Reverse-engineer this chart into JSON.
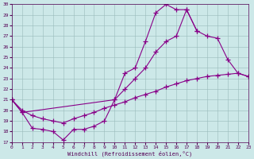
{
  "xlabel": "Windchill (Refroidissement éolien,°C)",
  "bg_color": "#cce8e8",
  "grid_color": "#99bbbb",
  "line_color": "#880088",
  "xlim": [
    0,
    23
  ],
  "ylim": [
    17,
    30
  ],
  "yticks": [
    17,
    18,
    19,
    20,
    21,
    22,
    23,
    24,
    25,
    26,
    27,
    28,
    29,
    30
  ],
  "xticks": [
    0,
    1,
    2,
    3,
    4,
    5,
    6,
    7,
    8,
    9,
    10,
    11,
    12,
    13,
    14,
    15,
    16,
    17,
    18,
    19,
    20,
    21,
    22,
    23
  ],
  "curve1_x": [
    0,
    1,
    2,
    3,
    4,
    5,
    6,
    7,
    8,
    9,
    10,
    11,
    12,
    13,
    14,
    15,
    16,
    17,
    18
  ],
  "curve1_y": [
    21.0,
    19.8,
    18.3,
    18.2,
    18.0,
    17.2,
    18.2,
    18.2,
    18.5,
    19.0,
    21.0,
    23.5,
    24.0,
    26.5,
    29.2,
    30.0,
    29.5,
    29.5,
    27.5
  ],
  "curve2_x": [
    0,
    1,
    10,
    11,
    12,
    13,
    14,
    15,
    16,
    17,
    18,
    19,
    20,
    21,
    22,
    23
  ],
  "curve2_y": [
    21.0,
    19.8,
    21.0,
    22.0,
    23.0,
    24.0,
    25.5,
    26.5,
    27.0,
    29.5,
    27.5,
    27.0,
    26.8,
    24.8,
    23.5,
    23.2
  ],
  "curve3_x": [
    0,
    1,
    2,
    3,
    4,
    5,
    6,
    7,
    8,
    9,
    10,
    11,
    12,
    13,
    14,
    15,
    16,
    17,
    18,
    19,
    20,
    21,
    22,
    23
  ],
  "curve3_y": [
    21.0,
    20.0,
    19.5,
    19.2,
    19.0,
    18.8,
    19.2,
    19.5,
    19.8,
    20.2,
    20.5,
    20.8,
    21.2,
    21.5,
    21.8,
    22.2,
    22.5,
    22.8,
    23.0,
    23.2,
    23.3,
    23.4,
    23.5,
    23.2
  ]
}
